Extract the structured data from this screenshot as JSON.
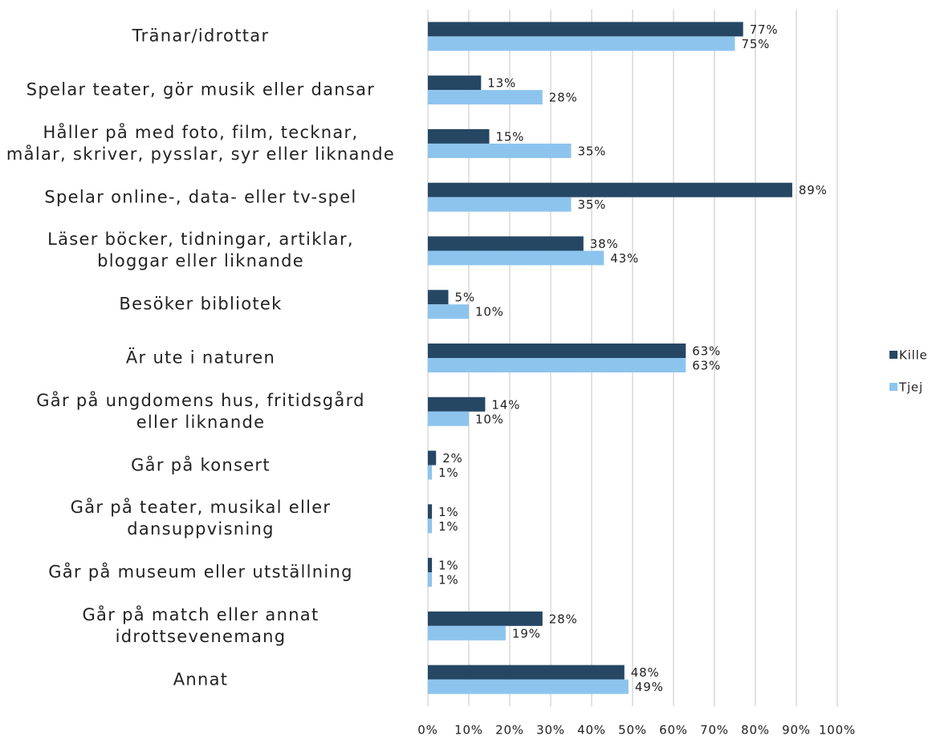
{
  "chart_data": {
    "type": "bar",
    "orientation": "horizontal",
    "categories": [
      "Tränar/idrottar",
      "Spelar teater, gör musik eller dansar",
      "Håller på med foto, film, tecknar,\nmålar, skriver, pysslar, syr eller liknande",
      "Spelar online-, data- eller tv-spel",
      "Läser böcker, tidningar, artiklar,\nbloggar eller liknande",
      "Besöker bibliotek",
      "Är ute i naturen",
      "Går på ungdomens hus, fritidsgård\neller liknande",
      "Går på konsert",
      "Går på teater, musikal eller\ndansuppvisning",
      "Går på museum eller utställning",
      "Går på match eller annat\nidrottsevenemang",
      "Annat"
    ],
    "series": [
      {
        "name": "Kille",
        "color": "#254764",
        "values": [
          77,
          13,
          15,
          89,
          38,
          5,
          63,
          14,
          2,
          1,
          1,
          28,
          48
        ],
        "value_labels": [
          "77%",
          "13%",
          "15%",
          "89%",
          "38%",
          "5%",
          "63%",
          "14%",
          "2%",
          "1%",
          "1%",
          "28%",
          "48%"
        ]
      },
      {
        "name": "Tjej",
        "color": "#8dc4ee",
        "values": [
          75,
          28,
          35,
          35,
          43,
          10,
          63,
          10,
          1,
          1,
          1,
          19,
          49
        ],
        "value_labels": [
          "75%",
          "28%",
          "35%",
          "35%",
          "43%",
          "10%",
          "63%",
          "10%",
          "1%",
          "1%",
          "1%",
          "19%",
          "49%"
        ]
      }
    ],
    "xlim": [
      0,
      100
    ],
    "xticks": [
      {
        "value": 0,
        "label": "0%"
      },
      {
        "value": 10,
        "label": "10%"
      },
      {
        "value": 20,
        "label": "20%"
      },
      {
        "value": 30,
        "label": "30%"
      },
      {
        "value": 40,
        "label": "40%"
      },
      {
        "value": 50,
        "label": "50%"
      },
      {
        "value": 60,
        "label": "60%"
      },
      {
        "value": 70,
        "label": "70%"
      },
      {
        "value": 80,
        "label": "80%"
      },
      {
        "value": 90,
        "label": "90%"
      },
      {
        "value": 100,
        "label": "100%"
      }
    ],
    "grid": true,
    "legend": "right"
  }
}
